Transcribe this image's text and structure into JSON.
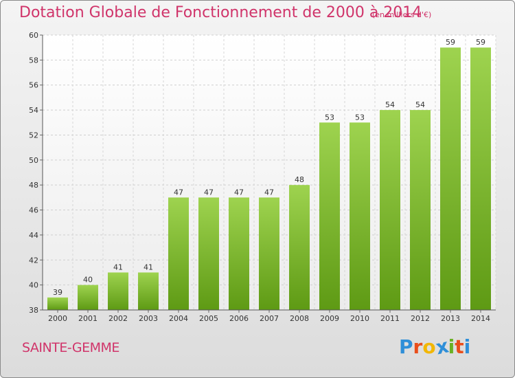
{
  "header": {
    "title": "Dotation Globale de Fonctionnement de 2000 à 2014",
    "subtitle": "(en milliers d'€)"
  },
  "footer": {
    "commune": "SAINTE-GEMME",
    "brand_letters": [
      "P",
      "r",
      "o",
      "x",
      "i",
      "t",
      "i"
    ],
    "brand_colors": [
      "#2f8fd8",
      "#e94e1b",
      "#f2b705",
      "#2f8fd8",
      "#6ab023",
      "#e94e1b",
      "#2f8fd8"
    ]
  },
  "chart_data": {
    "type": "bar",
    "title": "Dotation Globale de Fonctionnement de 2000 à 2014",
    "subtitle": "(en milliers d'€)",
    "xlabel": "",
    "ylabel": "",
    "categories": [
      "2000",
      "2001",
      "2002",
      "2003",
      "2004",
      "2005",
      "2006",
      "2007",
      "2008",
      "2009",
      "2010",
      "2011",
      "2012",
      "2013",
      "2014"
    ],
    "values": [
      39,
      40,
      41,
      41,
      47,
      47,
      47,
      47,
      48,
      53,
      53,
      54,
      54,
      59,
      59
    ],
    "ylim": [
      38,
      60
    ],
    "yticks": [
      38,
      40,
      42,
      44,
      46,
      48,
      50,
      52,
      54,
      56,
      58,
      60
    ],
    "grid": true,
    "bar_color": "#8cc63f"
  }
}
